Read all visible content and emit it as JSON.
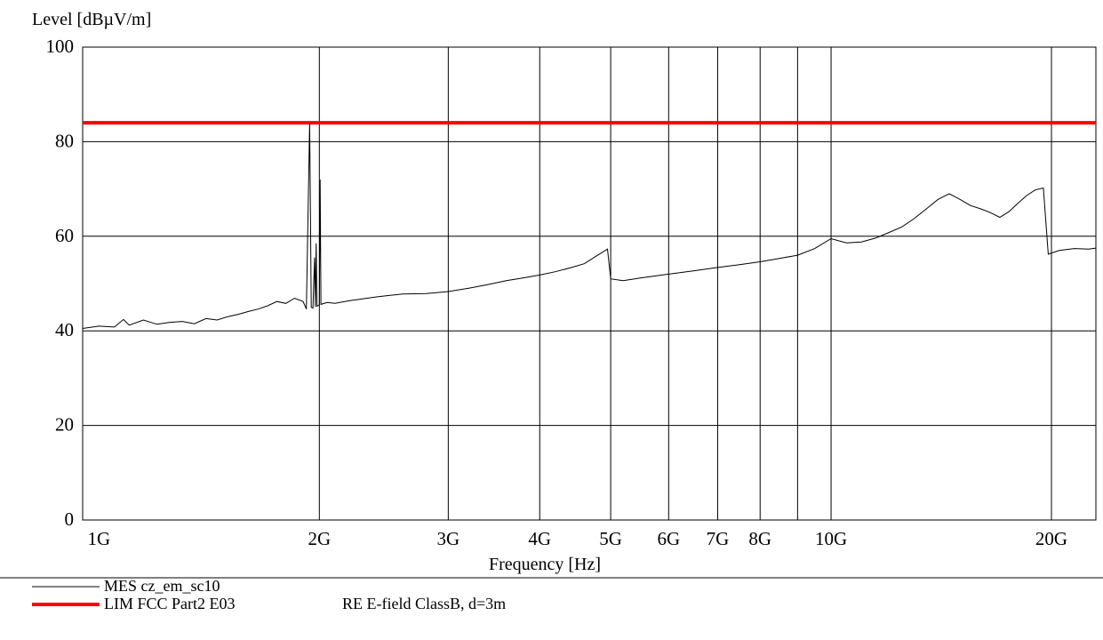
{
  "chart_data": {
    "type": "line",
    "ylabel": "Level [dBµV/m]",
    "xlabel": "Frequency [Hz]",
    "x_scale": "log",
    "xlim": [
      950000000,
      23000000000
    ],
    "ylim": [
      0,
      100
    ],
    "grid": true,
    "y_ticks": [
      0,
      20,
      40,
      60,
      80,
      100
    ],
    "y_tick_labels": [
      "0",
      "20",
      "40",
      "60",
      "80",
      "100"
    ],
    "x_ticks": [
      1000000000,
      2000000000,
      3000000000,
      4000000000,
      5000000000,
      6000000000,
      7000000000,
      8000000000,
      10000000000,
      20000000000
    ],
    "x_tick_labels": [
      "1G",
      "2G",
      "3G",
      "4G",
      "5G",
      "6G",
      "7G",
      "8G",
      "10G",
      "20G"
    ],
    "extra_gridlines_x": [
      9000000000
    ],
    "series": [
      {
        "name": "MES  cz_em_sc10",
        "color": "#000000",
        "points": [
          [
            950000000,
            40.5
          ],
          [
            1000000000,
            41.0
          ],
          [
            1050000000,
            40.8
          ],
          [
            1080000000,
            42.4
          ],
          [
            1100000000,
            41.2
          ],
          [
            1150000000,
            42.3
          ],
          [
            1200000000,
            41.4
          ],
          [
            1250000000,
            41.8
          ],
          [
            1300000000,
            42.0
          ],
          [
            1350000000,
            41.5
          ],
          [
            1400000000,
            42.6
          ],
          [
            1450000000,
            42.3
          ],
          [
            1500000000,
            43.0
          ],
          [
            1550000000,
            43.5
          ],
          [
            1600000000,
            44.1
          ],
          [
            1650000000,
            44.6
          ],
          [
            1700000000,
            45.3
          ],
          [
            1750000000,
            46.2
          ],
          [
            1800000000,
            45.8
          ],
          [
            1850000000,
            46.9
          ],
          [
            1900000000,
            46.2
          ],
          [
            1920000000,
            44.6
          ],
          [
            1940000000,
            84.0
          ],
          [
            1950000000,
            45.0
          ],
          [
            1960000000,
            44.8
          ],
          [
            1970000000,
            55.5
          ],
          [
            1975000000,
            45.1
          ],
          [
            1980000000,
            58.5
          ],
          [
            1985000000,
            45.2
          ],
          [
            2000000000,
            45.5
          ],
          [
            2005000000,
            72.0
          ],
          [
            2010000000,
            45.6
          ],
          [
            2050000000,
            46.0
          ],
          [
            2100000000,
            45.8
          ],
          [
            2200000000,
            46.4
          ],
          [
            2300000000,
            46.8
          ],
          [
            2400000000,
            47.2
          ],
          [
            2500000000,
            47.5
          ],
          [
            2600000000,
            47.8
          ],
          [
            2800000000,
            47.9
          ],
          [
            3000000000,
            48.3
          ],
          [
            3200000000,
            49.0
          ],
          [
            3400000000,
            49.8
          ],
          [
            3600000000,
            50.6
          ],
          [
            3800000000,
            51.2
          ],
          [
            4000000000,
            51.8
          ],
          [
            4200000000,
            52.5
          ],
          [
            4400000000,
            53.3
          ],
          [
            4600000000,
            54.2
          ],
          [
            4800000000,
            56.0
          ],
          [
            4950000000,
            57.3
          ],
          [
            5000000000,
            51.0
          ],
          [
            5200000000,
            50.6
          ],
          [
            5500000000,
            51.2
          ],
          [
            6000000000,
            52.0
          ],
          [
            6500000000,
            52.7
          ],
          [
            7000000000,
            53.4
          ],
          [
            7500000000,
            54.0
          ],
          [
            8000000000,
            54.6
          ],
          [
            8500000000,
            55.3
          ],
          [
            9000000000,
            56.0
          ],
          [
            9500000000,
            57.4
          ],
          [
            10000000000,
            59.5
          ],
          [
            10500000000,
            58.6
          ],
          [
            11000000000,
            58.8
          ],
          [
            11500000000,
            59.6
          ],
          [
            12000000000,
            60.8
          ],
          [
            12500000000,
            62.0
          ],
          [
            13000000000,
            63.8
          ],
          [
            13500000000,
            65.8
          ],
          [
            14000000000,
            67.8
          ],
          [
            14500000000,
            69.0
          ],
          [
            15000000000,
            67.8
          ],
          [
            15500000000,
            66.5
          ],
          [
            16000000000,
            65.8
          ],
          [
            16500000000,
            65.0
          ],
          [
            17000000000,
            64.0
          ],
          [
            17500000000,
            65.2
          ],
          [
            18000000000,
            67.0
          ],
          [
            18500000000,
            68.6
          ],
          [
            19000000000,
            69.8
          ],
          [
            19500000000,
            70.2
          ],
          [
            19800000000,
            56.2
          ],
          [
            20500000000,
            57.0
          ],
          [
            21500000000,
            57.4
          ],
          [
            22500000000,
            57.3
          ],
          [
            23000000000,
            57.5
          ]
        ]
      },
      {
        "name": "LIM  FCC Part2 E03",
        "color": "#ff0000",
        "points": [
          [
            950000000,
            84.0
          ],
          [
            23000000000,
            84.0
          ]
        ]
      }
    ]
  },
  "legend": {
    "items": [
      {
        "label": "MES  cz_em_sc10",
        "desc": "",
        "color": "#000000"
      },
      {
        "label": "LIM  FCC Part2 E03",
        "desc": "RE E-field ClassB, d=3m",
        "color": "#ff0000"
      }
    ]
  }
}
